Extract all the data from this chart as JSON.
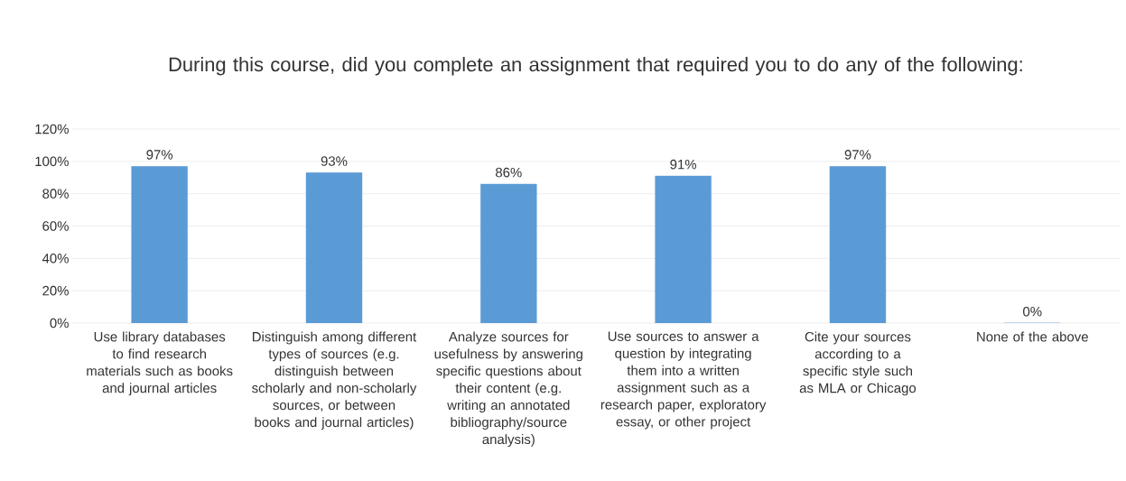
{
  "chart_data": {
    "type": "bar",
    "title": "During this course, did you complete an assignment that required you to do any of the following:",
    "categories": [
      "Use library databases to find research materials such as books and journal articles",
      "Distinguish among different types of sources (e.g. distinguish between scholarly and non-scholarly sources, or between books and journal articles)",
      "Analyze sources for usefulness by answering specific questions about their content (e.g. writing an annotated bibliography/source analysis)",
      "Use sources to answer a question by integrating them into a written assignment such as a research paper, exploratory essay, or other project",
      "Cite your sources according to a specific style such as MLA or Chicago",
      "None of the above"
    ],
    "values": [
      97,
      93,
      86,
      91,
      97,
      0
    ],
    "value_labels": [
      "97%",
      "93%",
      "86%",
      "91%",
      "97%",
      "0%"
    ],
    "color": "#5b9bd5",
    "ylim": [
      0,
      120
    ],
    "yticks": [
      {
        "value": 0,
        "label": "0%"
      },
      {
        "value": 20,
        "label": "20%"
      },
      {
        "value": 40,
        "label": "40%"
      },
      {
        "value": 60,
        "label": "60%"
      },
      {
        "value": 80,
        "label": "80%"
      },
      {
        "value": 100,
        "label": "100%"
      },
      {
        "value": 120,
        "label": "120%"
      }
    ],
    "grid": "y"
  }
}
